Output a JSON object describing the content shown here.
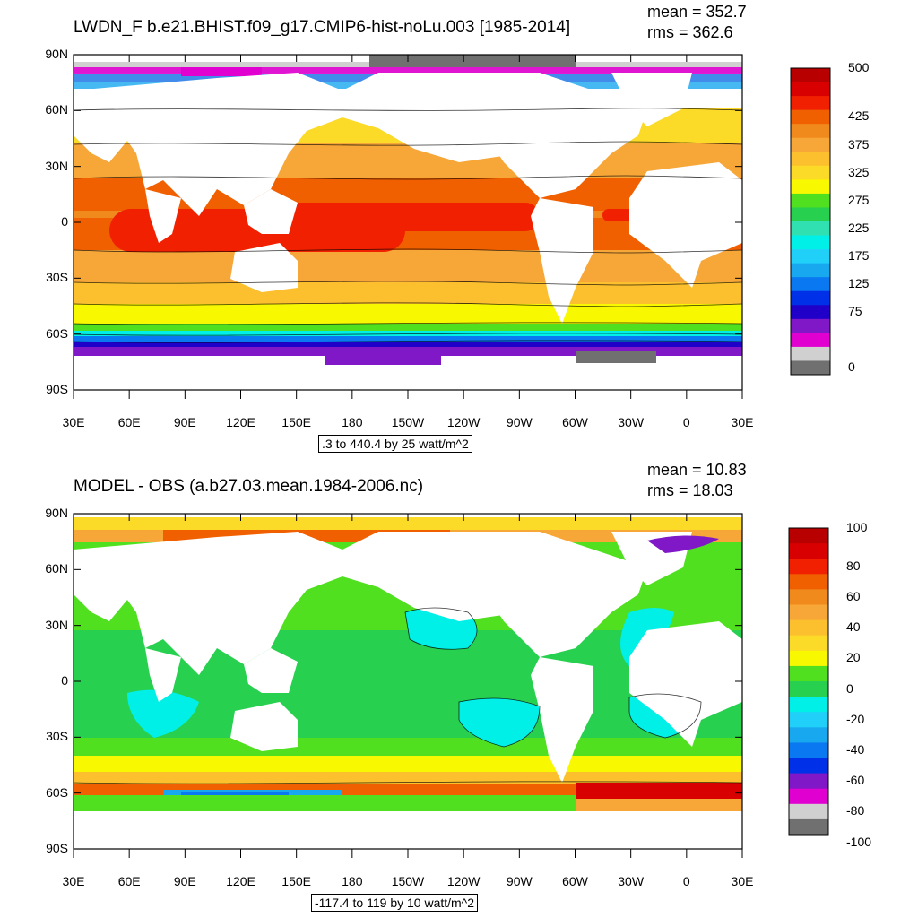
{
  "panels": [
    {
      "title": "LWDN_F b.e21.BHIST.f09_g17.CMIP6-hist-noLu.003 [1985-2014]",
      "mean": "mean = 352.7",
      "rms": "rms = 362.6",
      "info": ".3 to 440.4 by 25 watt/m^2",
      "y_ticks": [
        "90N",
        "60N",
        "30N",
        "0",
        "30S",
        "60S",
        "90S"
      ],
      "x_ticks": [
        "30E",
        "60E",
        "90E",
        "120E",
        "150E",
        "180",
        "150W",
        "120W",
        "90W",
        "60W",
        "30W",
        "0",
        "30E"
      ],
      "colorbar": {
        "colors": [
          "#b80000",
          "#d80000",
          "#f02000",
          "#f06000",
          "#f08a1c",
          "#f7a638",
          "#fcc02e",
          "#fcda28",
          "#f8f800",
          "#50e020",
          "#28d050",
          "#30e0b0",
          "#00f0e8",
          "#20d0f8",
          "#18a8f0",
          "#0a78f0",
          "#0030e8",
          "#2000c8",
          "#8018c8",
          "#e000d0",
          "#d0d0d0",
          "#707070"
        ],
        "labels": [
          "500",
          "425",
          "375",
          "325",
          "275",
          "225",
          "175",
          "125",
          "75",
          "0"
        ],
        "label_slots": [
          0,
          3,
          5,
          7,
          9,
          11,
          13,
          15,
          17,
          21
        ]
      }
    },
    {
      "title": "MODEL - OBS (a.b27.03.mean.1984-2006.nc)",
      "mean": "mean = 10.83",
      "rms": "rms = 18.03",
      "info": "-117.4 to 119 by 10 watt/m^2",
      "y_ticks": [
        "90N",
        "60N",
        "30N",
        "0",
        "30S",
        "60S",
        "90S"
      ],
      "x_ticks": [
        "30E",
        "60E",
        "90E",
        "120E",
        "150E",
        "180",
        "150W",
        "120W",
        "90W",
        "60W",
        "30W",
        "0",
        "30E"
      ],
      "colorbar": {
        "colors": [
          "#b80000",
          "#d80000",
          "#f02000",
          "#f06000",
          "#f08a1c",
          "#f7a638",
          "#fcc02e",
          "#fcda28",
          "#f8f800",
          "#50e020",
          "#28d050",
          "#00f0e8",
          "#20d0f8",
          "#18a8f0",
          "#0a78f0",
          "#0030e8",
          "#8018c8",
          "#e000d0",
          "#d0d0d0",
          "#707070"
        ],
        "labels": [
          "100",
          "80",
          "60",
          "40",
          "20",
          "0",
          "-20",
          "-40",
          "-60",
          "-80",
          "-100"
        ],
        "label_slots": [
          0,
          2,
          4,
          6,
          8,
          10,
          12,
          14,
          16,
          18,
          20
        ]
      }
    }
  ]
}
